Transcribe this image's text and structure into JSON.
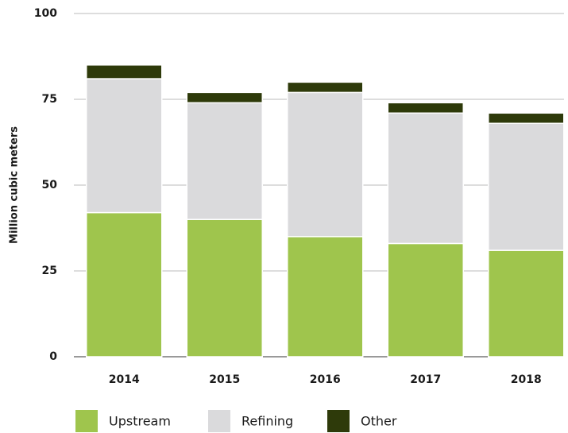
{
  "chart_data": {
    "type": "stacked_bar",
    "y_label": "Million cubic meters",
    "categories": [
      "2014",
      "2015",
      "2016",
      "2017",
      "2018"
    ],
    "series": [
      {
        "name": "Upstream",
        "color": "#9fc54d",
        "values": [
          42,
          40,
          35,
          33,
          31
        ]
      },
      {
        "name": "Refining",
        "color": "#dadadc",
        "values": [
          39,
          34,
          42,
          38,
          37
        ]
      },
      {
        "name": "Other",
        "color": "#2e3a0a",
        "values": [
          4,
          3,
          3,
          3,
          3
        ]
      }
    ],
    "ylim": [
      0,
      100
    ],
    "yticks": [
      0,
      25,
      50,
      75,
      100
    ],
    "grid": true,
    "legend": "bottom"
  }
}
